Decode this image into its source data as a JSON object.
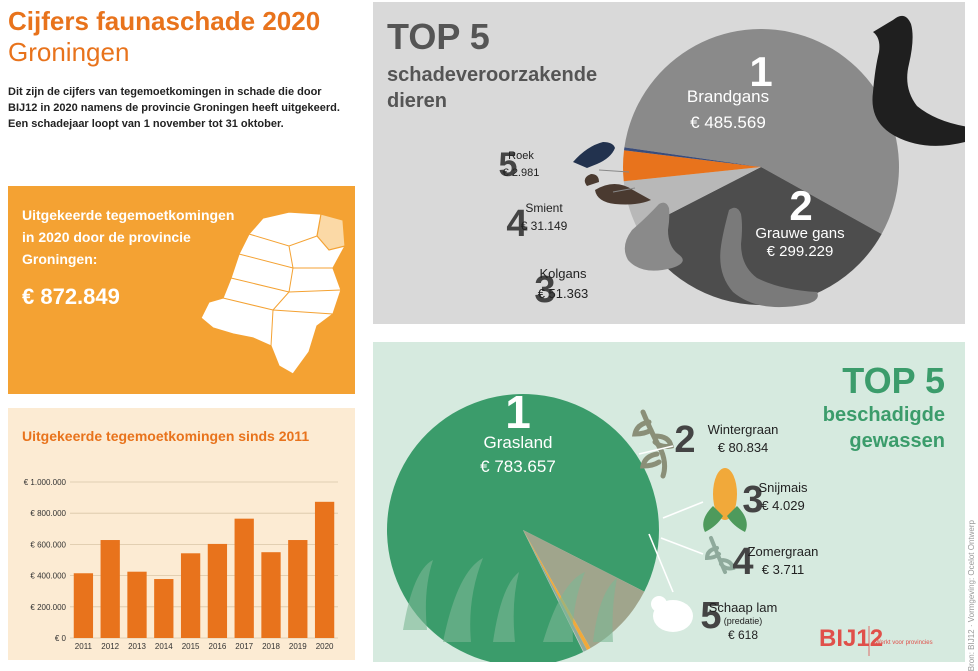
{
  "header": {
    "title": "Cijfers faunaschade 2020",
    "subtitle": "Groningen",
    "intro": [
      "Dit zijn de cijfers van tegemoetkomingen in schade die door",
      "BIJ12 in 2020 namens de provincie Groningen heeft uitgekeerd.",
      "Een schadejaar loopt van 1 november tot 31 oktober."
    ]
  },
  "total": {
    "label": [
      "Uitgekeerde tegemoetkomingen",
      "in 2020 door de provincie",
      "Groningen:"
    ],
    "amount": "€ 872.849"
  },
  "chart_data": [
    {
      "type": "bar",
      "title": "Uitgekeerde tegemoetkomingen sinds 2011",
      "categories": [
        "2011",
        "2012",
        "2013",
        "2014",
        "2015",
        "2016",
        "2017",
        "2018",
        "2019",
        "2020"
      ],
      "values": [
        415000,
        628000,
        425000,
        378000,
        543000,
        603000,
        765000,
        550000,
        628000,
        873000
      ],
      "ylim": [
        0,
        1000000
      ],
      "yticks": [
        0,
        200000,
        400000,
        600000,
        800000,
        1000000
      ],
      "ytick_labels": [
        "€ 0",
        "€ 200.000",
        "€ 400.000",
        "€ 600.000",
        "€ 800.000",
        "€ 1.000.000"
      ],
      "color": "#e8731c",
      "grid": true
    },
    {
      "type": "pie",
      "title": "TOP 5 schadeveroorzakende dieren",
      "labels": [
        "Brandgans",
        "Grauwe gans",
        "Kolgans",
        "Smient",
        "Roek"
      ],
      "values": [
        485569,
        299229,
        51363,
        31149,
        2981
      ],
      "value_labels": [
        "€ 485.569",
        "€ 299.229",
        "€ 51.363",
        "€ 31.149",
        "€ 2.981"
      ],
      "ranks": [
        "1",
        "2",
        "3",
        "4",
        "5"
      ],
      "colors": [
        "#8a8a8a",
        "#4d4d4d",
        "#b8b8b8",
        "#e8731c",
        "#3a4c7a"
      ]
    },
    {
      "type": "pie",
      "title": "TOP 5 beschadigde gewassen",
      "labels": [
        "Grasland",
        "Wintergraan",
        "Snijmais",
        "Zomergraan",
        "Schaap lam"
      ],
      "sublabels": [
        "",
        "",
        "",
        "",
        "(predatie)"
      ],
      "values": [
        783657,
        80834,
        4029,
        3711,
        618
      ],
      "value_labels": [
        "€ 783.657",
        "€ 80.834",
        "€ 4.029",
        "€ 3.711",
        "€ 618"
      ],
      "ranks": [
        "1",
        "2",
        "3",
        "4",
        "5"
      ],
      "colors": [
        "#3b9c6b",
        "#a0a58c",
        "#f1a93a",
        "#8faa9c",
        "#b7c4bc"
      ]
    }
  ],
  "animals_panel": {
    "top5": "TOP 5",
    "subtitle": [
      "schadeveroorzakende",
      "dieren"
    ]
  },
  "crops_panel": {
    "top5": "TOP 5",
    "subtitle": [
      "beschadigde",
      "gewassen"
    ]
  },
  "footer": {
    "credit": "Bron: BIJ12 · Vormgeving: Ocelot Ontwerp",
    "logo": "BIJ12",
    "logo_tagline": "Werkt voor provincies"
  },
  "colors": {
    "orange": "#e8731c",
    "orange_box": "#f4a233",
    "chart_bg": "#fcebd3",
    "grey_panel": "#d9d9d9",
    "green_panel": "#d6eadf",
    "green": "#3b9c6b"
  }
}
